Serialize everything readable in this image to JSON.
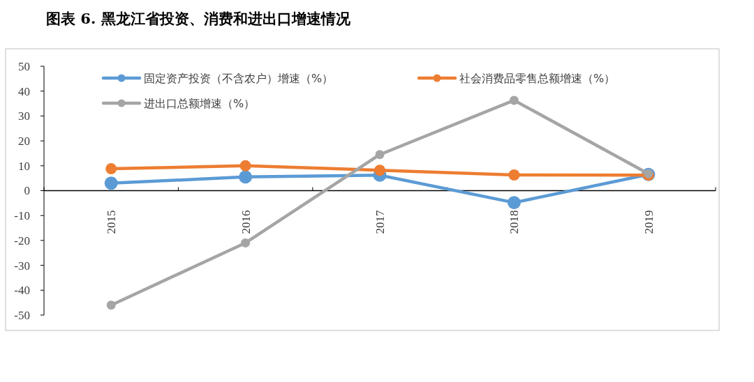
{
  "chart_data": {
    "type": "line",
    "title": "图表 6. 黑龙江省投资、消费和进出口增速情况",
    "categories": [
      "2015",
      "2016",
      "2017",
      "2018",
      "2019"
    ],
    "series": [
      {
        "name": "固定资产投资（不含农户）增速（%）",
        "color": "#5b9bd5",
        "values": [
          3,
          5.5,
          6.2,
          -4.8,
          6.5
        ]
      },
      {
        "name": "社会消费品零售总额增速（%）",
        "color": "#ed7d31",
        "values": [
          8.8,
          10,
          8.2,
          6.3,
          6.2
        ]
      },
      {
        "name": "进出口总额增速（%）",
        "color": "#a5a5a5",
        "values": [
          -46,
          -21,
          14.5,
          36.3,
          6.8
        ]
      }
    ],
    "ylim": [
      -50,
      50
    ],
    "yticks": [
      -50,
      -40,
      -30,
      -20,
      -10,
      0,
      10,
      20,
      30,
      40,
      50
    ],
    "grid": false,
    "legend": "top",
    "marker": "circle",
    "line_style": "solid"
  }
}
